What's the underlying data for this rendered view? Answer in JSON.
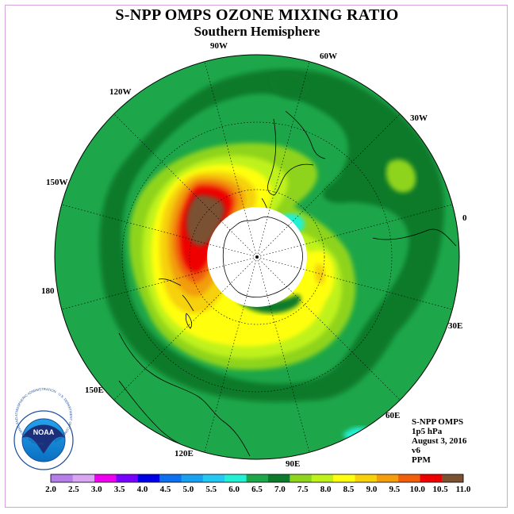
{
  "title": "S-NPP OMPS OZONE MIXING RATIO",
  "subtitle": "Southern Hemisphere",
  "longitude_labels": [
    "90W",
    "60W",
    "30W",
    "0",
    "30E",
    "60E",
    "90E",
    "120E",
    "150E",
    "180",
    "150W",
    "120W"
  ],
  "info": {
    "instrument": "S-NPP OMPS",
    "pressure": "1p5 hPa",
    "date": "August 3, 2016",
    "version": "v6",
    "units": "PPM"
  },
  "logo": {
    "text": "NOAA",
    "ring_text": "NATIONAL OCEANIC AND ATMOSPHERIC ADMINISTRATION · U.S. DEPARTMENT OF COMMERCE"
  },
  "colorbar": {
    "ticks": [
      "2.0",
      "2.5",
      "3.0",
      "3.5",
      "4.0",
      "4.5",
      "5.0",
      "5.5",
      "6.0",
      "6.5",
      "7.0",
      "7.5",
      "8.0",
      "8.5",
      "9.0",
      "9.5",
      "10.0",
      "10.5",
      "11.0"
    ],
    "colors": [
      "#b57fea",
      "#d8a6f2",
      "#ee00ee",
      "#7700ff",
      "#0000e6",
      "#0e70ec",
      "#1aa0f0",
      "#25c8f2",
      "#24f0d4",
      "#1ea64a",
      "#0b7a2c",
      "#8fd41e",
      "#bff21a",
      "#ffff10",
      "#f6d10c",
      "#f29e0e",
      "#ef5f0c",
      "#ee0000",
      "#7a5132"
    ]
  }
}
